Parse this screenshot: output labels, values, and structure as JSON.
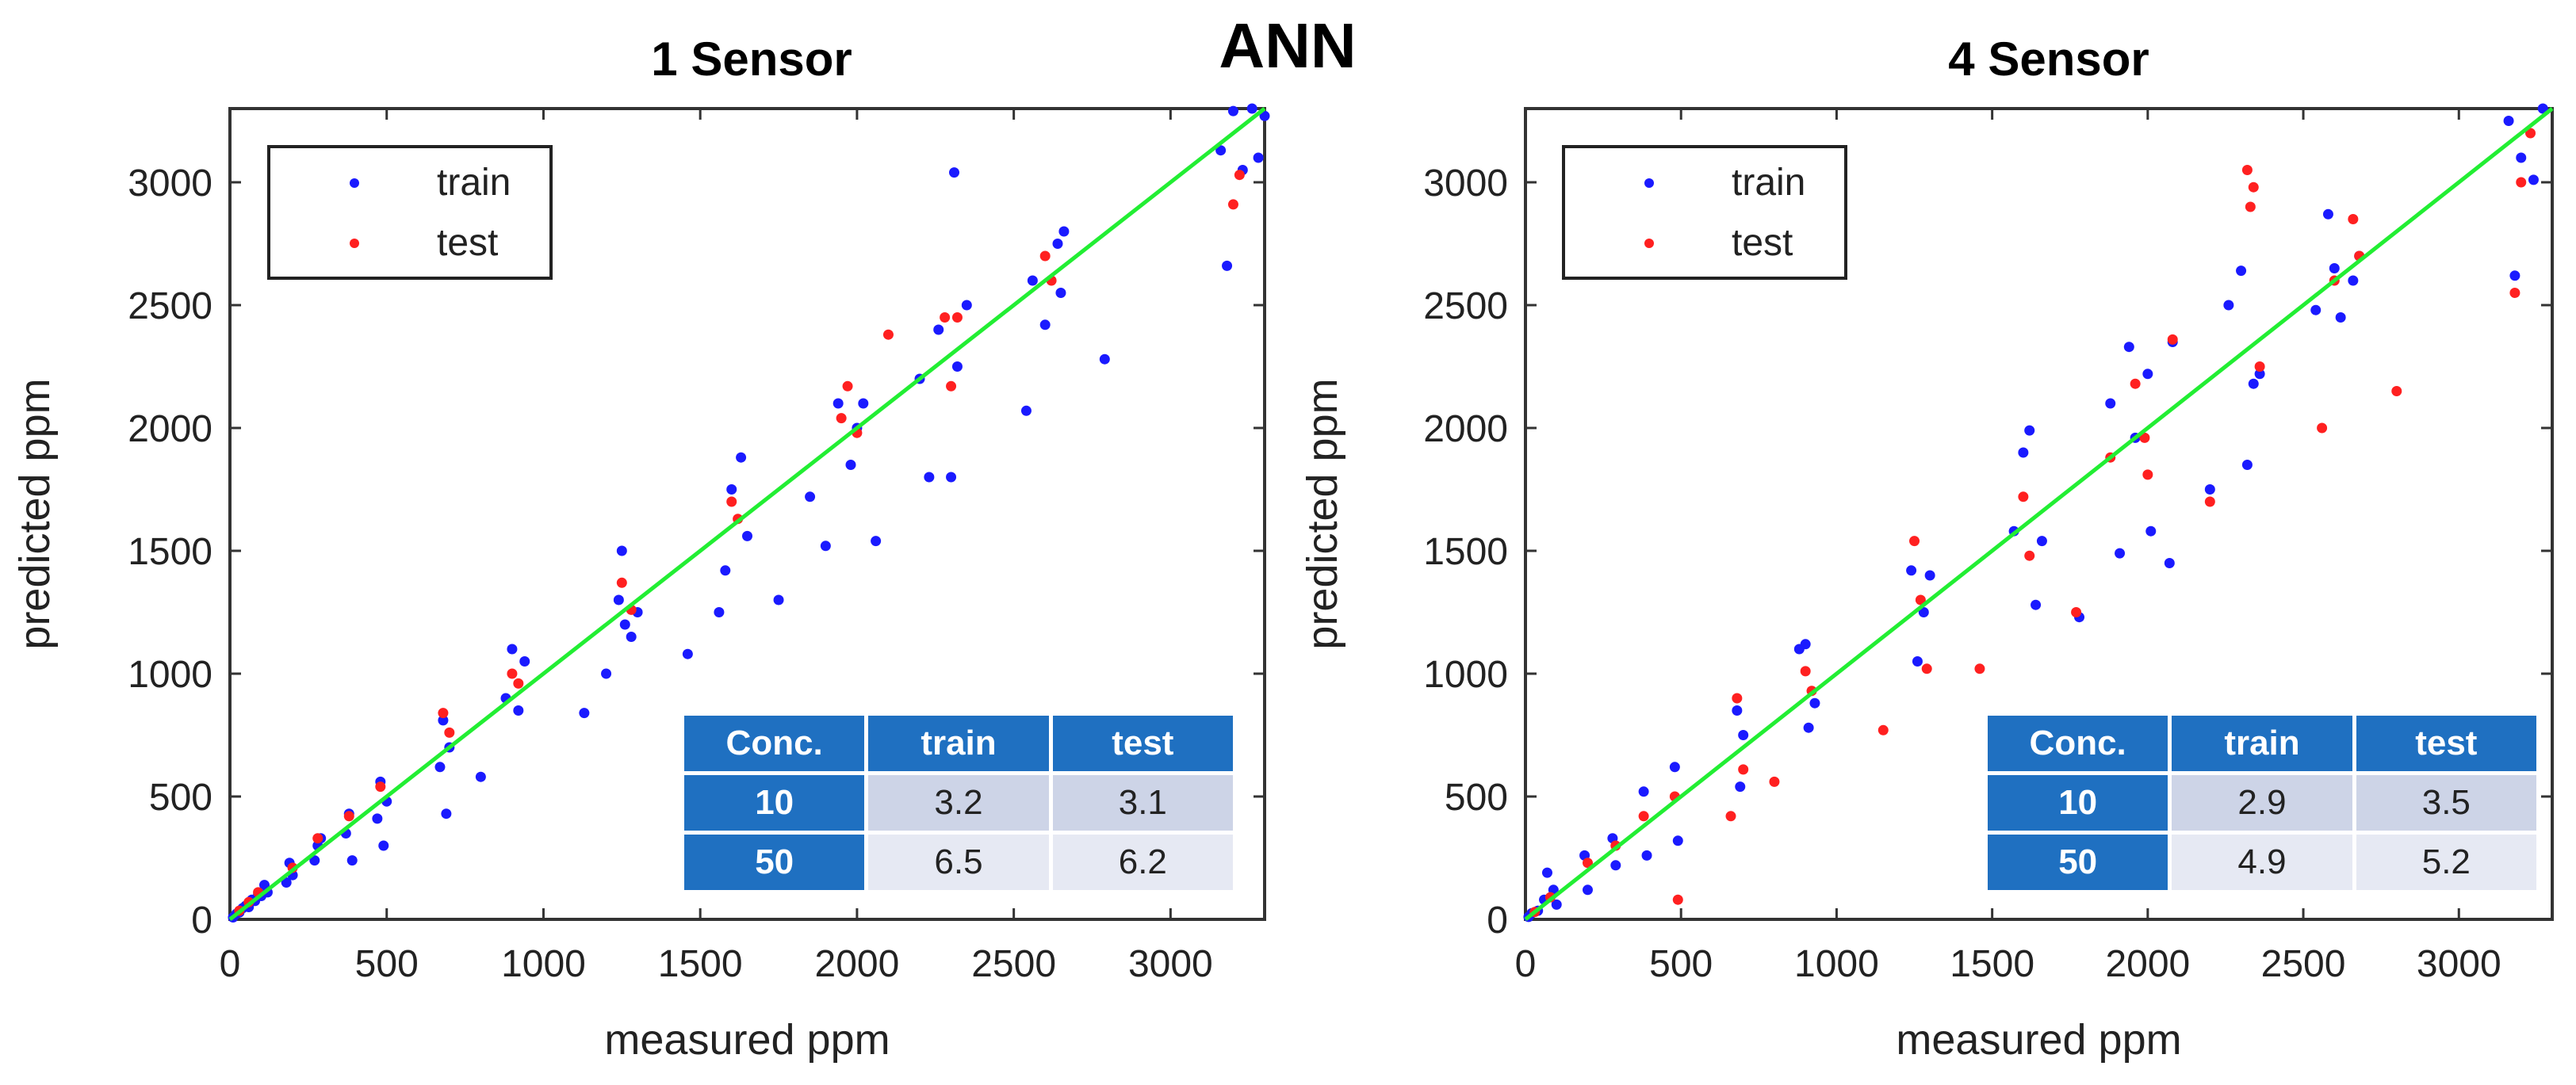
{
  "figure_title": "ANN",
  "colors": {
    "train": "#1a1aff",
    "test": "#ff2020",
    "fit_line": "#22ee33",
    "table_header": "#1f70c1"
  },
  "chart_data": [
    {
      "type": "scatter",
      "title": "1 Sensor",
      "xlabel": "measured ppm",
      "ylabel": "predicted ppm",
      "xlim": [
        0,
        3300
      ],
      "ylim": [
        0,
        3300
      ],
      "xticks": [
        0,
        500,
        1000,
        1500,
        2000,
        2500,
        3000
      ],
      "yticks": [
        0,
        500,
        1000,
        1500,
        2000,
        2500,
        3000
      ],
      "legend": {
        "position": "top-left",
        "entries": [
          "train",
          "test"
        ]
      },
      "fit_line": [
        [
          0,
          0
        ],
        [
          3300,
          3300
        ]
      ],
      "series": [
        {
          "name": "train",
          "color": "#1a1aff",
          "points": [
            [
              10,
              8
            ],
            [
              20,
              22
            ],
            [
              30,
              28
            ],
            [
              40,
              45
            ],
            [
              50,
              55
            ],
            [
              60,
              50
            ],
            [
              70,
              80
            ],
            [
              80,
              75
            ],
            [
              90,
              100
            ],
            [
              100,
              95
            ],
            [
              110,
              140
            ],
            [
              120,
              110
            ],
            [
              180,
              150
            ],
            [
              190,
              230
            ],
            [
              200,
              180
            ],
            [
              270,
              240
            ],
            [
              280,
              300
            ],
            [
              290,
              330
            ],
            [
              370,
              350
            ],
            [
              380,
              430
            ],
            [
              390,
              240
            ],
            [
              470,
              410
            ],
            [
              480,
              560
            ],
            [
              490,
              300
            ],
            [
              500,
              480
            ],
            [
              670,
              620
            ],
            [
              680,
              810
            ],
            [
              690,
              430
            ],
            [
              700,
              700
            ],
            [
              800,
              580
            ],
            [
              880,
              900
            ],
            [
              900,
              1100
            ],
            [
              920,
              850
            ],
            [
              940,
              1050
            ],
            [
              1130,
              840
            ],
            [
              1200,
              1000
            ],
            [
              1240,
              1300
            ],
            [
              1250,
              1500
            ],
            [
              1260,
              1200
            ],
            [
              1280,
              1150
            ],
            [
              1300,
              1250
            ],
            [
              1460,
              1080
            ],
            [
              1560,
              1250
            ],
            [
              1580,
              1420
            ],
            [
              1600,
              1750
            ],
            [
              1630,
              1880
            ],
            [
              1650,
              1560
            ],
            [
              1750,
              1300
            ],
            [
              1850,
              1720
            ],
            [
              1900,
              1520
            ],
            [
              1940,
              2100
            ],
            [
              1980,
              1850
            ],
            [
              2000,
              2000
            ],
            [
              2020,
              2100
            ],
            [
              2060,
              1540
            ],
            [
              2200,
              2200
            ],
            [
              2230,
              1800
            ],
            [
              2260,
              2400
            ],
            [
              2300,
              1800
            ],
            [
              2310,
              3040
            ],
            [
              2320,
              2250
            ],
            [
              2350,
              2500
            ],
            [
              2540,
              2070
            ],
            [
              2560,
              2600
            ],
            [
              2600,
              2420
            ],
            [
              2640,
              2750
            ],
            [
              2650,
              2550
            ],
            [
              2660,
              2800
            ],
            [
              2790,
              2280
            ],
            [
              3160,
              3130
            ],
            [
              3180,
              2660
            ],
            [
              3200,
              3290
            ],
            [
              3230,
              3050
            ],
            [
              3260,
              3300
            ],
            [
              3280,
              3100
            ],
            [
              3300,
              3270
            ]
          ]
        },
        {
          "name": "test",
          "color": "#ff2020",
          "points": [
            [
              30,
              35
            ],
            [
              60,
              70
            ],
            [
              90,
              110
            ],
            [
              200,
              210
            ],
            [
              280,
              330
            ],
            [
              380,
              420
            ],
            [
              480,
              540
            ],
            [
              680,
              840
            ],
            [
              700,
              760
            ],
            [
              900,
              1000
            ],
            [
              920,
              960
            ],
            [
              1250,
              1370
            ],
            [
              1280,
              1260
            ],
            [
              1600,
              1700
            ],
            [
              1620,
              1630
            ],
            [
              1950,
              2040
            ],
            [
              1970,
              2170
            ],
            [
              2000,
              1980
            ],
            [
              2100,
              2380
            ],
            [
              2280,
              2450
            ],
            [
              2300,
              2170
            ],
            [
              2320,
              2450
            ],
            [
              2600,
              2700
            ],
            [
              2620,
              2600
            ],
            [
              3200,
              2910
            ],
            [
              3220,
              3030
            ]
          ]
        }
      ],
      "table": {
        "headers": [
          "Conc.",
          "train",
          "test"
        ],
        "rows": [
          {
            "conc": "10",
            "train": "3.2",
            "test": "3.1"
          },
          {
            "conc": "50",
            "train": "6.5",
            "test": "6.2"
          }
        ]
      }
    },
    {
      "type": "scatter",
      "title": "4 Sensor",
      "xlabel": "measured ppm",
      "ylabel": "predicted ppm",
      "xlim": [
        0,
        3300
      ],
      "ylim": [
        0,
        3300
      ],
      "xticks": [
        0,
        500,
        1000,
        1500,
        2000,
        2500,
        3000
      ],
      "yticks": [
        0,
        500,
        1000,
        1500,
        2000,
        2500,
        3000
      ],
      "legend": {
        "position": "top-left",
        "entries": [
          "train",
          "test"
        ]
      },
      "fit_line": [
        [
          0,
          0
        ],
        [
          3300,
          3300
        ]
      ],
      "series": [
        {
          "name": "train",
          "color": "#1a1aff",
          "points": [
            [
              10,
              10
            ],
            [
              20,
              25
            ],
            [
              40,
              35
            ],
            [
              60,
              80
            ],
            [
              70,
              190
            ],
            [
              90,
              120
            ],
            [
              100,
              60
            ],
            [
              190,
              260
            ],
            [
              200,
              120
            ],
            [
              280,
              330
            ],
            [
              290,
              220
            ],
            [
              380,
              520
            ],
            [
              390,
              260
            ],
            [
              480,
              620
            ],
            [
              490,
              320
            ],
            [
              680,
              850
            ],
            [
              690,
              540
            ],
            [
              700,
              750
            ],
            [
              880,
              1100
            ],
            [
              900,
              1120
            ],
            [
              910,
              780
            ],
            [
              930,
              880
            ],
            [
              1240,
              1420
            ],
            [
              1260,
              1050
            ],
            [
              1280,
              1250
            ],
            [
              1300,
              1400
            ],
            [
              1570,
              1580
            ],
            [
              1600,
              1900
            ],
            [
              1620,
              1990
            ],
            [
              1640,
              1280
            ],
            [
              1660,
              1540
            ],
            [
              1780,
              1230
            ],
            [
              1880,
              2100
            ],
            [
              1910,
              1490
            ],
            [
              1940,
              2330
            ],
            [
              1960,
              1960
            ],
            [
              2000,
              2220
            ],
            [
              2010,
              1580
            ],
            [
              2070,
              1450
            ],
            [
              2080,
              2350
            ],
            [
              2200,
              1750
            ],
            [
              2260,
              2500
            ],
            [
              2300,
              2640
            ],
            [
              2320,
              1850
            ],
            [
              2340,
              2180
            ],
            [
              2360,
              2220
            ],
            [
              2540,
              2480
            ],
            [
              2580,
              2870
            ],
            [
              2600,
              2650
            ],
            [
              2620,
              2450
            ],
            [
              2660,
              2600
            ],
            [
              2680,
              2700
            ],
            [
              3160,
              3250
            ],
            [
              3180,
              2620
            ],
            [
              3200,
              3100
            ],
            [
              3240,
              3010
            ],
            [
              3270,
              3300
            ]
          ]
        },
        {
          "name": "test",
          "color": "#ff2020",
          "points": [
            [
              30,
              30
            ],
            [
              80,
              90
            ],
            [
              200,
              230
            ],
            [
              290,
              300
            ],
            [
              380,
              420
            ],
            [
              480,
              500
            ],
            [
              490,
              80
            ],
            [
              660,
              420
            ],
            [
              680,
              900
            ],
            [
              700,
              610
            ],
            [
              800,
              560
            ],
            [
              900,
              1010
            ],
            [
              920,
              930
            ],
            [
              1150,
              770
            ],
            [
              1250,
              1540
            ],
            [
              1270,
              1300
            ],
            [
              1290,
              1020
            ],
            [
              1460,
              1020
            ],
            [
              1600,
              1720
            ],
            [
              1620,
              1480
            ],
            [
              1770,
              1250
            ],
            [
              1880,
              1880
            ],
            [
              1960,
              2180
            ],
            [
              1990,
              1960
            ],
            [
              2000,
              1810
            ],
            [
              2080,
              2360
            ],
            [
              2200,
              1700
            ],
            [
              2320,
              3050
            ],
            [
              2330,
              2900
            ],
            [
              2340,
              2980
            ],
            [
              2360,
              2250
            ],
            [
              2560,
              2000
            ],
            [
              2600,
              2600
            ],
            [
              2660,
              2850
            ],
            [
              2680,
              2700
            ],
            [
              2800,
              2150
            ],
            [
              3180,
              2550
            ],
            [
              3200,
              3000
            ],
            [
              3230,
              3200
            ]
          ]
        }
      ],
      "table": {
        "headers": [
          "Conc.",
          "train",
          "test"
        ],
        "rows": [
          {
            "conc": "10",
            "train": "2.9",
            "test": "3.5"
          },
          {
            "conc": "50",
            "train": "4.9",
            "test": "5.2"
          }
        ]
      }
    }
  ]
}
